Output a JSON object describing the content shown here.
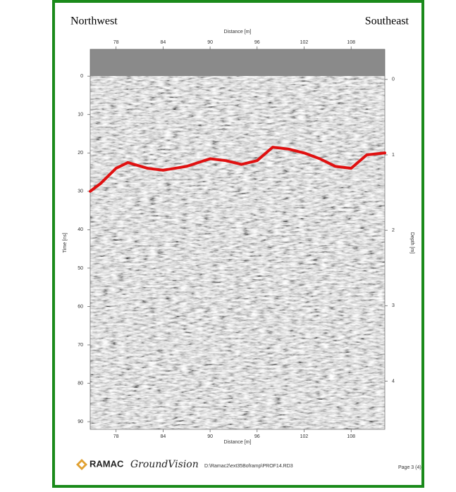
{
  "chart_data": {
    "type": "line",
    "labels": {
      "left": "Northwest",
      "right": "Southeast"
    },
    "xlabel": "Distance [m]",
    "ylabel": "Time [ns]",
    "y2label": "Depth [m]",
    "x": [
      74.7,
      76,
      78,
      79.5,
      82,
      84,
      87,
      90,
      92,
      94,
      96,
      98,
      100,
      102,
      104,
      106,
      108,
      110,
      112.3
    ],
    "series": [
      {
        "color": "#e01010",
        "values": [
          30,
          28,
          24,
          22.5,
          24,
          24.5,
          23.5,
          21.5,
          22,
          23,
          22,
          18.5,
          19,
          20,
          21.5,
          23.5,
          24,
          20.5,
          20
        ]
      }
    ],
    "xlim": [
      74.7,
      112.3
    ],
    "xticks": [
      78,
      84,
      90,
      96,
      102,
      108
    ],
    "ylim": [
      92,
      -7
    ],
    "yticks": [
      0,
      10,
      20,
      30,
      40,
      50,
      60,
      70,
      80,
      90
    ],
    "y2lim": [
      4.64,
      -0.4
    ],
    "y2ticks": [
      0,
      1,
      2,
      3,
      4
    ],
    "footer": {
      "brand": "RAMAC",
      "product": "GroundVision",
      "file": "D:\\Ramac2\\ext35Boframp\\PROF14.RD3",
      "page": "Page 3 (4)"
    }
  }
}
